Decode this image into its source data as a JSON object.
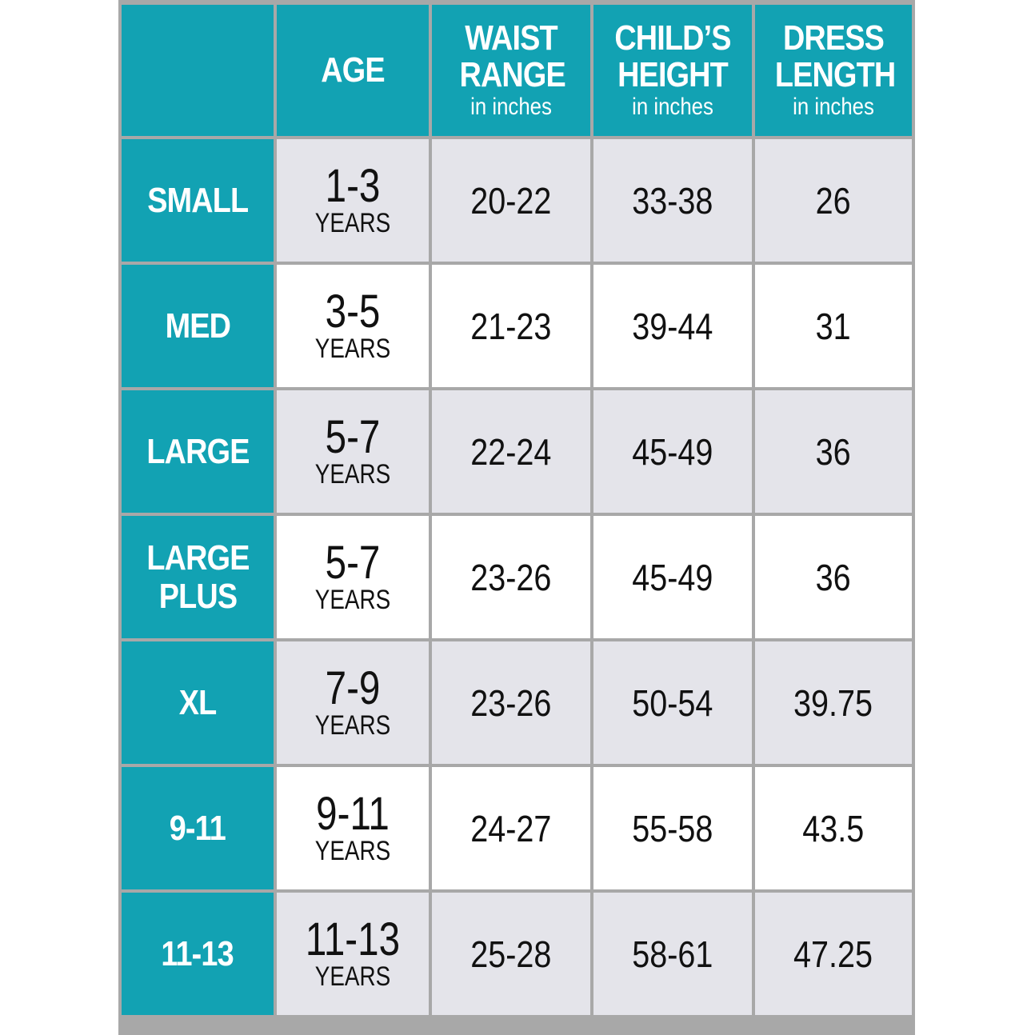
{
  "header": {
    "age": "AGE",
    "waist": {
      "title": "WAIST RANGE",
      "sub": "in inches"
    },
    "height": {
      "title": "CHILD’S HEIGHT",
      "sub": "in inches"
    },
    "length": {
      "title": "DRESS LENGTH",
      "sub": "in inches"
    }
  },
  "colors": {
    "accent": "#12a2b3",
    "shade": "#e4e4ea",
    "grid": "#a8a8a8"
  },
  "rows": [
    {
      "size": "SMALL",
      "age": "1-3",
      "unit": "YEARS",
      "waist": "20-22",
      "height": "33-38",
      "length": "26"
    },
    {
      "size": "MED",
      "age": "3-5",
      "unit": "YEARS",
      "waist": "21-23",
      "height": "39-44",
      "length": "31"
    },
    {
      "size": "LARGE",
      "age": "5-7",
      "unit": "YEARS",
      "waist": "22-24",
      "height": "45-49",
      "length": "36"
    },
    {
      "size": "LARGE\nPLUS",
      "age": "5-7",
      "unit": "YEARS",
      "waist": "23-26",
      "height": "45-49",
      "length": "36"
    },
    {
      "size": "XL",
      "age": "7-9",
      "unit": "YEARS",
      "waist": "23-26",
      "height": "50-54",
      "length": "39.75"
    },
    {
      "size": "9-11",
      "age": "9-11",
      "unit": "YEARS",
      "waist": "24-27",
      "height": "55-58",
      "length": "43.5"
    },
    {
      "size": "11-13",
      "age": "11-13",
      "unit": "YEARS",
      "waist": "25-28",
      "height": "58-61",
      "length": "47.25"
    }
  ]
}
